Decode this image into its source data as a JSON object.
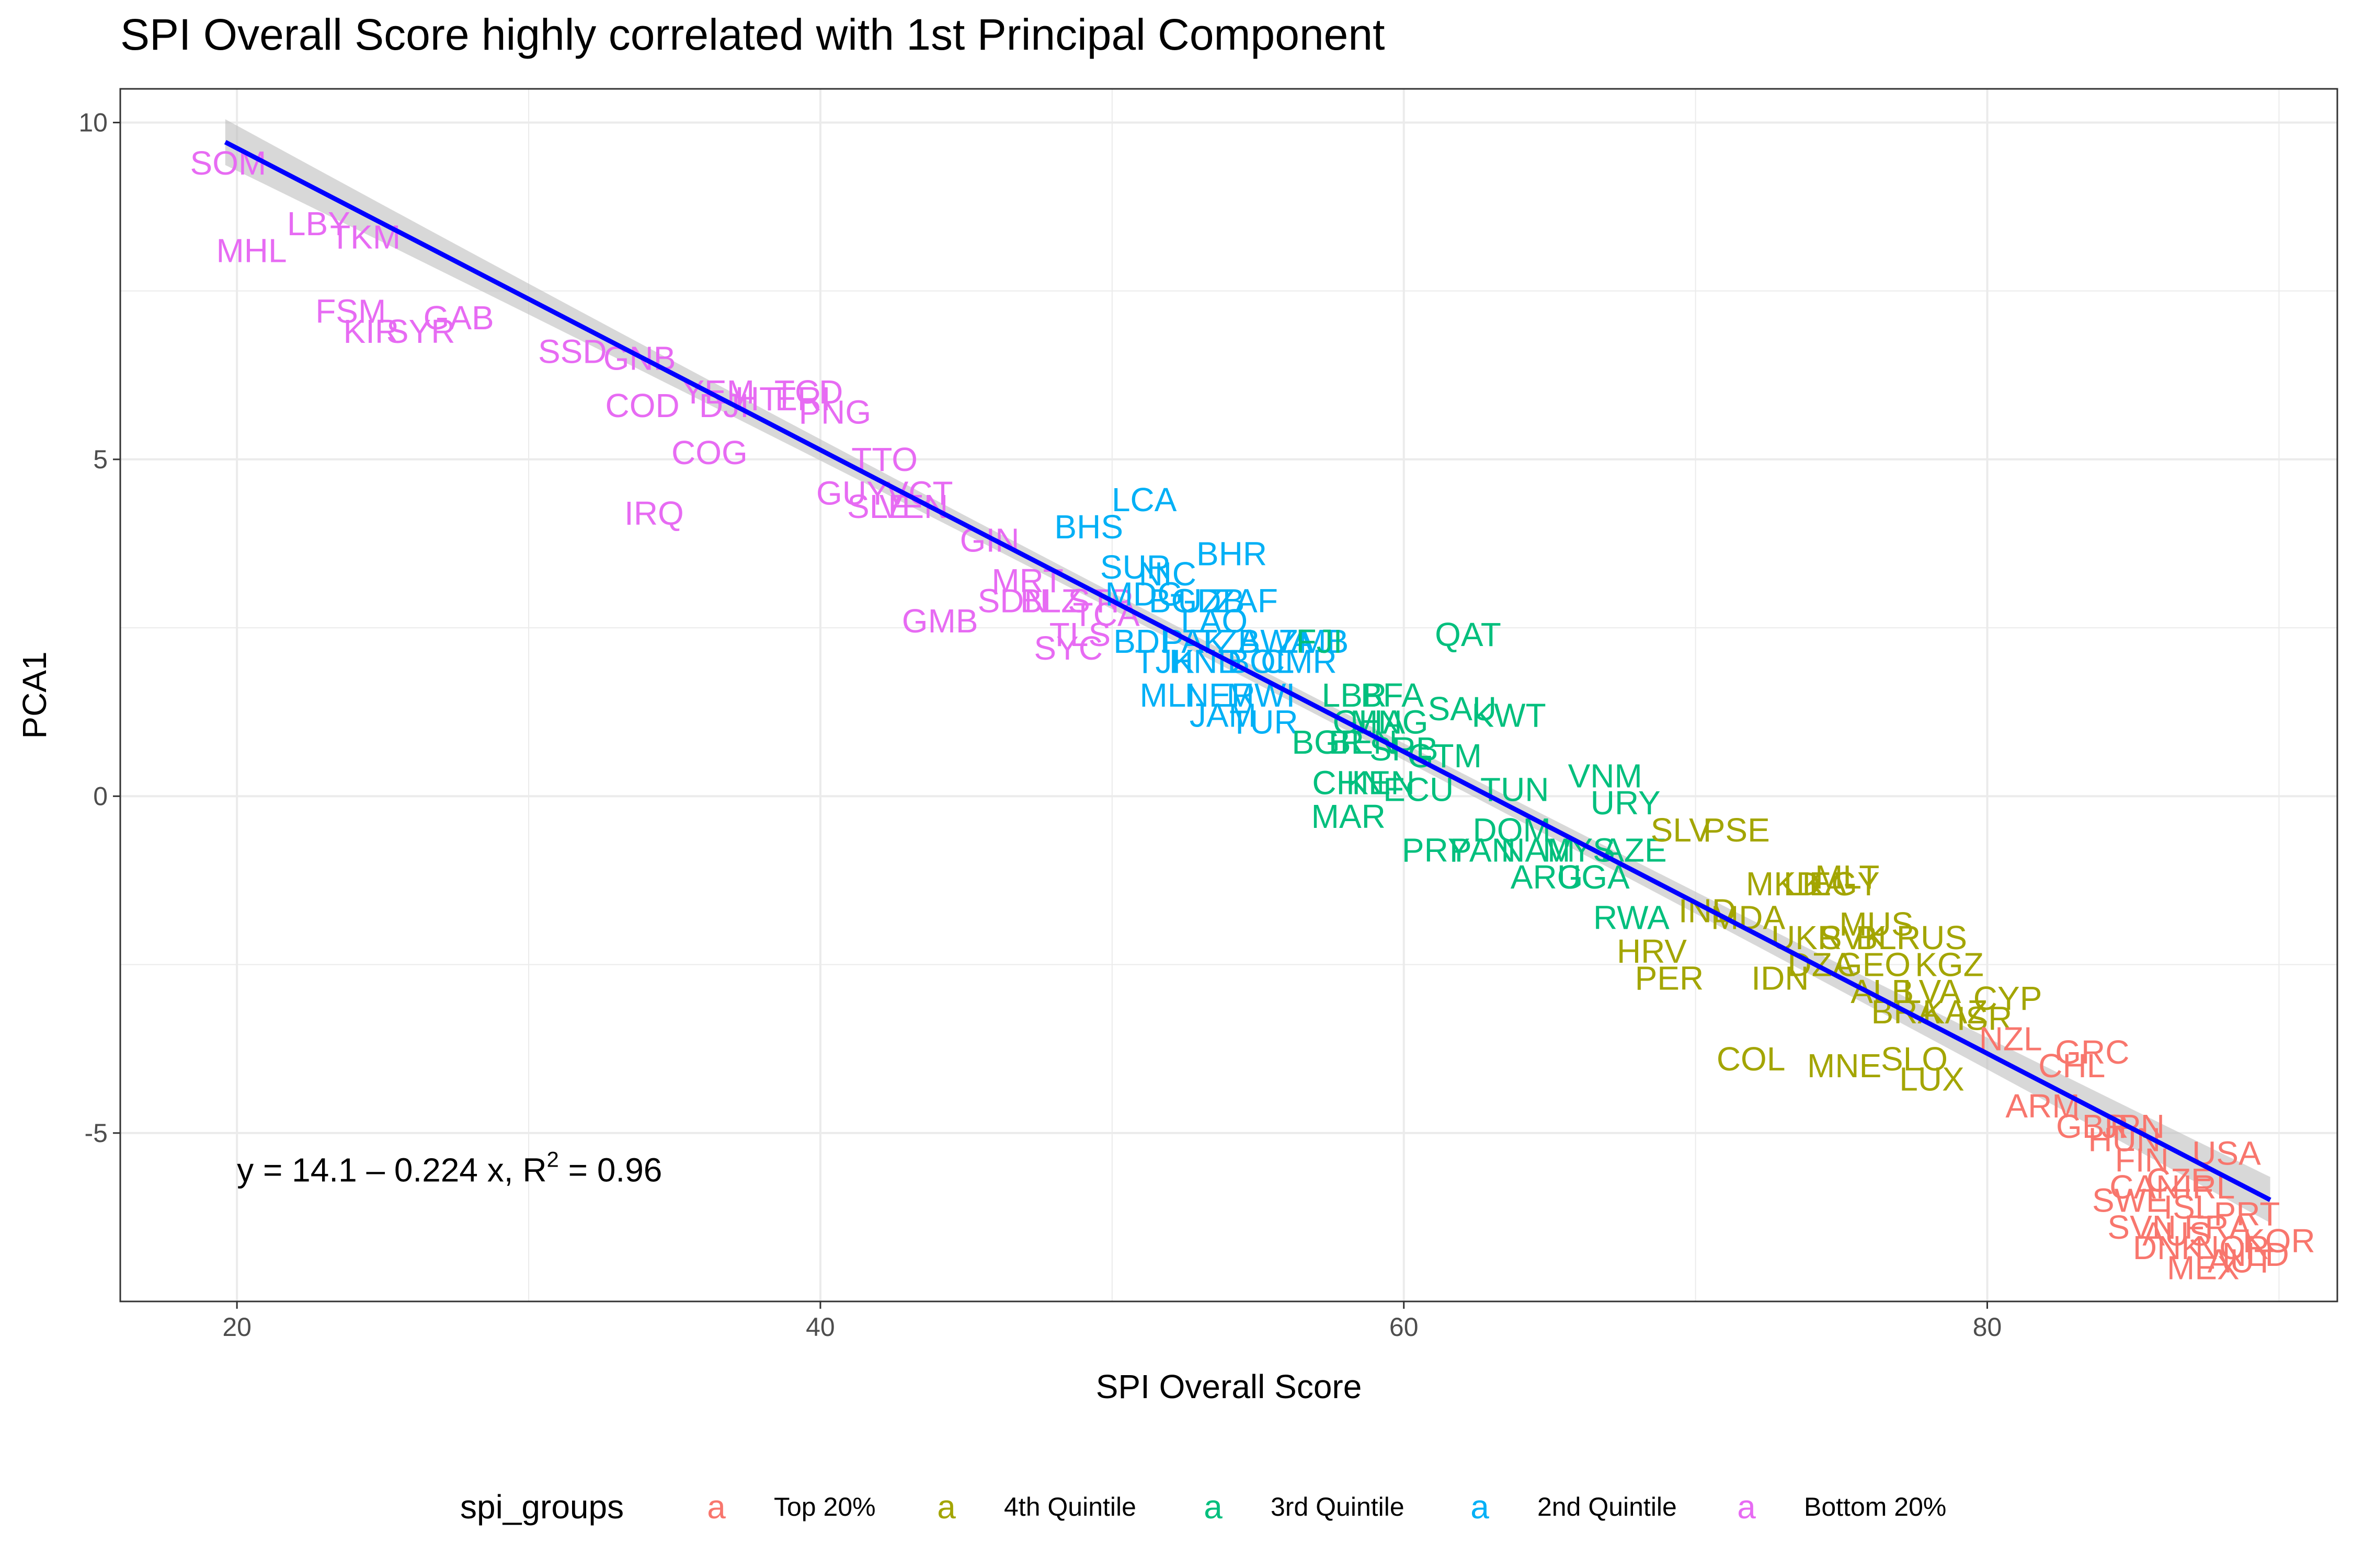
{
  "chart_data": {
    "type": "scatter",
    "title": "SPI Overall Score highly correlated with 1st Principal Component",
    "xlabel": "SPI Overall Score",
    "ylabel": "PCA1",
    "xlim": [
      16,
      92
    ],
    "ylim": [
      -7.5,
      10.5
    ],
    "x_ticks": [
      20,
      40,
      60,
      80
    ],
    "y_ticks": [
      -5,
      0,
      5,
      10
    ],
    "grid": true,
    "legend": {
      "title": "spi_groups",
      "placement": "bottom",
      "key_glyph": "a",
      "entries": [
        {
          "label": "Top 20%",
          "color": "#F8766D"
        },
        {
          "label": "4th Quintile",
          "color": "#A3A500"
        },
        {
          "label": "3rd Quintile",
          "color": "#00BF7D"
        },
        {
          "label": "2nd Quintile",
          "color": "#00B0F6"
        },
        {
          "label": "Bottom 20%",
          "color": "#E76BF3"
        }
      ]
    },
    "regression": {
      "intercept": 14.1,
      "slope": -0.224,
      "x_range": [
        19.6,
        89.7
      ],
      "color": "#0000FF",
      "ribbon_color": "#BEBEBE",
      "equation_prefix": "y = 14.1 – 0.224 x, R",
      "equation_sup": "2",
      "equation_suffix": " = 0.96",
      "equation_x": 20,
      "equation_y": -5.55
    },
    "series": [
      {
        "name": "Bottom 20%",
        "color": "#E76BF3",
        "points": [
          {
            "label": "SOM",
            "x": 19.7,
            "y": 9.4
          },
          {
            "label": "LBY",
            "x": 22.8,
            "y": 8.5
          },
          {
            "label": "TKM",
            "x": 24.4,
            "y": 8.3
          },
          {
            "label": "MHL",
            "x": 20.5,
            "y": 8.1
          },
          {
            "label": "FSM",
            "x": 23.9,
            "y": 7.2
          },
          {
            "label": "KIR",
            "x": 24.6,
            "y": 6.9
          },
          {
            "label": "SYR",
            "x": 26.3,
            "y": 6.9
          },
          {
            "label": "GAB",
            "x": 27.6,
            "y": 7.1
          },
          {
            "label": "SSD",
            "x": 31.5,
            "y": 6.6
          },
          {
            "label": "GNB",
            "x": 33.8,
            "y": 6.5
          },
          {
            "label": "YEM",
            "x": 36.5,
            "y": 6.0
          },
          {
            "label": "COD",
            "x": 33.9,
            "y": 5.8
          },
          {
            "label": "DJI",
            "x": 36.7,
            "y": 5.8
          },
          {
            "label": "HTI",
            "x": 38.0,
            "y": 5.9
          },
          {
            "label": "ERI",
            "x": 39.4,
            "y": 5.9
          },
          {
            "label": "TCD",
            "x": 39.6,
            "y": 6.0
          },
          {
            "label": "PNG",
            "x": 40.5,
            "y": 5.7
          },
          {
            "label": "COG",
            "x": 36.2,
            "y": 5.1
          },
          {
            "label": "TTO",
            "x": 42.2,
            "y": 5.0
          },
          {
            "label": "GUY",
            "x": 41.1,
            "y": 4.5
          },
          {
            "label": "VCT",
            "x": 43.4,
            "y": 4.5
          },
          {
            "label": "SLE",
            "x": 42.0,
            "y": 4.3
          },
          {
            "label": "VEN",
            "x": 43.2,
            "y": 4.3
          },
          {
            "label": "IRQ",
            "x": 34.3,
            "y": 4.2
          },
          {
            "label": "GIN",
            "x": 45.8,
            "y": 3.8
          },
          {
            "label": "MRT",
            "x": 47.1,
            "y": 3.2
          },
          {
            "label": "SDN",
            "x": 46.6,
            "y": 2.9
          },
          {
            "label": "BLZ",
            "x": 47.9,
            "y": 2.9
          },
          {
            "label": "STP",
            "x": 49.6,
            "y": 2.9
          },
          {
            "label": "TCA",
            "x": 49.8,
            "y": 2.7
          },
          {
            "label": "GMB",
            "x": 44.1,
            "y": 2.6
          },
          {
            "label": "TLS",
            "x": 48.9,
            "y": 2.4
          },
          {
            "label": "SYC",
            "x": 48.5,
            "y": 2.2
          }
        ]
      },
      {
        "name": "2nd Quintile",
        "color": "#00B0F6",
        "points": [
          {
            "label": "LCA",
            "x": 51.1,
            "y": 4.4
          },
          {
            "label": "BHS",
            "x": 49.2,
            "y": 4.0
          },
          {
            "label": "BHR",
            "x": 54.1,
            "y": 3.6
          },
          {
            "label": "SUR",
            "x": 50.8,
            "y": 3.4
          },
          {
            "label": "NIC",
            "x": 51.9,
            "y": 3.3
          },
          {
            "label": "MDG",
            "x": 51.1,
            "y": 3.0
          },
          {
            "label": "BGD",
            "x": 52.5,
            "y": 2.9
          },
          {
            "label": "UZB",
            "x": 53.4,
            "y": 2.9
          },
          {
            "label": "ZAF",
            "x": 54.6,
            "y": 2.9
          },
          {
            "label": "LAO",
            "x": 53.5,
            "y": 2.6
          },
          {
            "label": "BDI",
            "x": 51.0,
            "y": 2.3
          },
          {
            "label": "PAK",
            "x": 52.8,
            "y": 2.3
          },
          {
            "label": "TZA",
            "x": 54.0,
            "y": 2.3
          },
          {
            "label": "BWA",
            "x": 55.6,
            "y": 2.3
          },
          {
            "label": "ZMB",
            "x": 56.9,
            "y": 2.3
          },
          {
            "label": "TJK",
            "x": 51.8,
            "y": 2.0
          },
          {
            "label": "HND",
            "x": 53.2,
            "y": 2.0
          },
          {
            "label": "BOL",
            "x": 55.1,
            "y": 2.0
          },
          {
            "label": "CMR",
            "x": 56.4,
            "y": 2.0
          },
          {
            "label": "MLI",
            "x": 51.9,
            "y": 1.5
          },
          {
            "label": "NER",
            "x": 53.7,
            "y": 1.5
          },
          {
            "label": "MWI",
            "x": 55.1,
            "y": 1.5
          },
          {
            "label": "JAM",
            "x": 53.8,
            "y": 1.2
          },
          {
            "label": "TUR",
            "x": 55.2,
            "y": 1.1
          }
        ]
      },
      {
        "name": "3rd Quintile",
        "color": "#00BF7D",
        "points": [
          {
            "label": "QAT",
            "x": 62.2,
            "y": 2.4
          },
          {
            "label": "FJI",
            "x": 57.1,
            "y": 2.3
          },
          {
            "label": "LBR",
            "x": 58.3,
            "y": 1.5
          },
          {
            "label": "BFA",
            "x": 59.6,
            "y": 1.5
          },
          {
            "label": "SAU",
            "x": 62.0,
            "y": 1.3
          },
          {
            "label": "KWT",
            "x": 63.6,
            "y": 1.2
          },
          {
            "label": "GHA",
            "x": 58.8,
            "y": 1.1
          },
          {
            "label": "MNG",
            "x": 59.5,
            "y": 1.1
          },
          {
            "label": "BGR",
            "x": 57.4,
            "y": 0.8
          },
          {
            "label": "BEN",
            "x": 58.6,
            "y": 0.8
          },
          {
            "label": "SRB",
            "x": 60.0,
            "y": 0.7
          },
          {
            "label": "GTM",
            "x": 61.4,
            "y": 0.6
          },
          {
            "label": "CHN",
            "x": 58.1,
            "y": 0.2
          },
          {
            "label": "KEN",
            "x": 59.2,
            "y": 0.2
          },
          {
            "label": "ECU",
            "x": 60.5,
            "y": 0.1
          },
          {
            "label": "TUN",
            "x": 63.8,
            "y": 0.1
          },
          {
            "label": "VNM",
            "x": 66.9,
            "y": 0.3
          },
          {
            "label": "URY",
            "x": 67.6,
            "y": -0.1
          },
          {
            "label": "MAR",
            "x": 58.1,
            "y": -0.3
          },
          {
            "label": "DOM",
            "x": 63.7,
            "y": -0.5
          },
          {
            "label": "PRY",
            "x": 61.1,
            "y": -0.8
          },
          {
            "label": "PAN",
            "x": 62.7,
            "y": -0.8
          },
          {
            "label": "NAM",
            "x": 64.6,
            "y": -0.8
          },
          {
            "label": "MYS",
            "x": 66.0,
            "y": -0.8
          },
          {
            "label": "AZE",
            "x": 67.9,
            "y": -0.8
          },
          {
            "label": "ARG",
            "x": 64.9,
            "y": -1.2
          },
          {
            "label": "UGA",
            "x": 66.5,
            "y": -1.2
          },
          {
            "label": "RWA",
            "x": 67.8,
            "y": -1.8
          }
        ]
      },
      {
        "name": "4th Quintile",
        "color": "#A3A500",
        "points": [
          {
            "label": "SLV",
            "x": 69.5,
            "y": -0.5
          },
          {
            "label": "PSE",
            "x": 71.4,
            "y": -0.5
          },
          {
            "label": "MKD",
            "x": 73.0,
            "y": -1.3
          },
          {
            "label": "LKA",
            "x": 74.1,
            "y": -1.3
          },
          {
            "label": "EGY",
            "x": 75.1,
            "y": -1.3
          },
          {
            "label": "MLT",
            "x": 75.2,
            "y": -1.2
          },
          {
            "label": "MUS",
            "x": 76.2,
            "y": -1.9
          },
          {
            "label": "IND",
            "x": 70.4,
            "y": -1.7
          },
          {
            "label": "MDA",
            "x": 71.8,
            "y": -1.8
          },
          {
            "label": "HRV",
            "x": 68.5,
            "y": -2.3
          },
          {
            "label": "UKR",
            "x": 73.8,
            "y": -2.1
          },
          {
            "label": "SVK",
            "x": 75.4,
            "y": -2.1
          },
          {
            "label": "BLR",
            "x": 76.6,
            "y": -2.1
          },
          {
            "label": "RUS",
            "x": 78.1,
            "y": -2.1
          },
          {
            "label": "PER",
            "x": 69.1,
            "y": -2.7
          },
          {
            "label": "IDN",
            "x": 72.9,
            "y": -2.7
          },
          {
            "label": "DZA",
            "x": 74.3,
            "y": -2.5
          },
          {
            "label": "GEO",
            "x": 76.1,
            "y": -2.5
          },
          {
            "label": "KGZ",
            "x": 78.7,
            "y": -2.5
          },
          {
            "label": "ALB",
            "x": 76.4,
            "y": -2.9
          },
          {
            "label": "LVA",
            "x": 78.1,
            "y": -2.9
          },
          {
            "label": "CYP",
            "x": 80.7,
            "y": -3.0
          },
          {
            "label": "BRA",
            "x": 77.2,
            "y": -3.2
          },
          {
            "label": "KAZ",
            "x": 78.9,
            "y": -3.2
          },
          {
            "label": "ISR",
            "x": 79.9,
            "y": -3.3
          },
          {
            "label": "COL",
            "x": 71.9,
            "y": -3.9
          },
          {
            "label": "MNE",
            "x": 75.1,
            "y": -4.0
          },
          {
            "label": "SLO",
            "x": 77.5,
            "y": -3.9
          },
          {
            "label": "LUX",
            "x": 78.1,
            "y": -4.2
          }
        ]
      },
      {
        "name": "Top 20%",
        "color": "#F8766D",
        "points": [
          {
            "label": "NZL",
            "x": 80.8,
            "y": -3.6
          },
          {
            "label": "GRC",
            "x": 83.6,
            "y": -3.8
          },
          {
            "label": "CHL",
            "x": 82.9,
            "y": -4.0
          },
          {
            "label": "ARM",
            "x": 81.9,
            "y": -4.6
          },
          {
            "label": "GBR",
            "x": 83.6,
            "y": -4.9
          },
          {
            "label": "JPN",
            "x": 85.0,
            "y": -4.9
          },
          {
            "label": "HUN",
            "x": 84.7,
            "y": -5.1
          },
          {
            "label": "USA",
            "x": 88.2,
            "y": -5.3
          },
          {
            "label": "FIN",
            "x": 85.3,
            "y": -5.4
          },
          {
            "label": "CZE",
            "x": 86.6,
            "y": -5.7
          },
          {
            "label": "CAN",
            "x": 85.4,
            "y": -5.8
          },
          {
            "label": "IRL",
            "x": 87.6,
            "y": -5.8
          },
          {
            "label": "SWE",
            "x": 84.9,
            "y": -6.0
          },
          {
            "label": "ISL",
            "x": 86.9,
            "y": -6.1
          },
          {
            "label": "PRT",
            "x": 88.9,
            "y": -6.2
          },
          {
            "label": "SVN",
            "x": 85.3,
            "y": -6.4
          },
          {
            "label": "FRA",
            "x": 87.9,
            "y": -6.4
          },
          {
            "label": "AUS",
            "x": 86.5,
            "y": -6.5
          },
          {
            "label": "KOR",
            "x": 90.0,
            "y": -6.6
          },
          {
            "label": "DNK",
            "x": 86.2,
            "y": -6.7
          },
          {
            "label": "NOR",
            "x": 88.4,
            "y": -6.7
          },
          {
            "label": "NLD",
            "x": 89.2,
            "y": -6.8
          },
          {
            "label": "MEX",
            "x": 87.4,
            "y": -7.0
          },
          {
            "label": "AUT",
            "x": 88.7,
            "y": -6.9
          }
        ]
      }
    ]
  }
}
